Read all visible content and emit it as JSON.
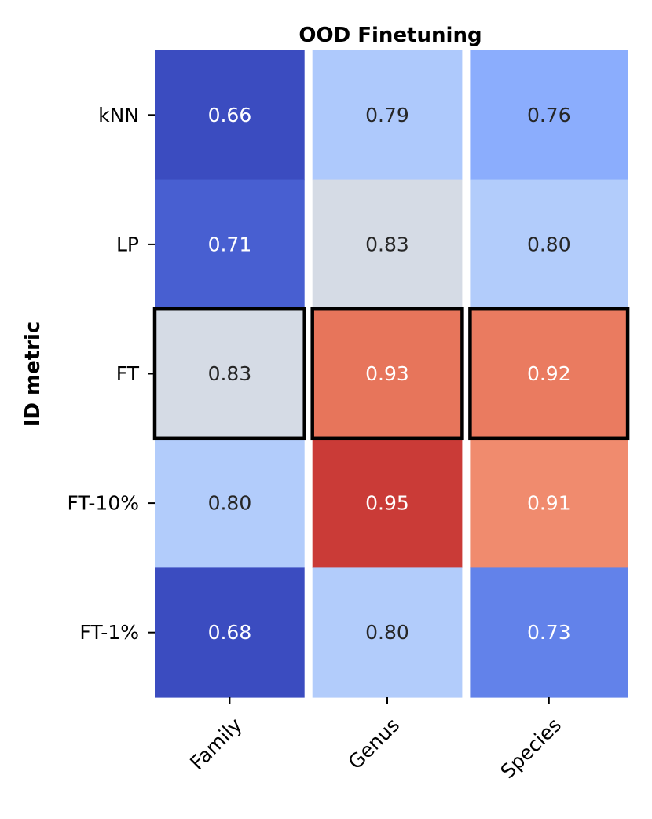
{
  "chart_data": {
    "type": "heatmap",
    "title": "OOD Finetuning",
    "xlabel": "",
    "ylabel": "ID metric",
    "columns": [
      "Family",
      "Genus",
      "Species"
    ],
    "rows": [
      "kNN",
      "LP",
      "FT",
      "FT-10%",
      "FT-1%"
    ],
    "values": [
      [
        0.66,
        0.79,
        0.76
      ],
      [
        0.71,
        0.83,
        0.8
      ],
      [
        0.83,
        0.93,
        0.92
      ],
      [
        0.8,
        0.95,
        0.91
      ],
      [
        0.68,
        0.8,
        0.73
      ]
    ],
    "cell_colors": [
      [
        "#3b4cc0",
        "#aec9fc",
        "#8badfd"
      ],
      [
        "#485fd1",
        "#d5dbe5",
        "#b2ccfb"
      ],
      [
        "#d5dbe5",
        "#e7755b",
        "#ea7b60"
      ],
      [
        "#b2ccfb",
        "#ca3b37",
        "#f08b6e"
      ],
      [
        "#3b4cc0",
        "#b2ccfb",
        "#6282ea"
      ]
    ],
    "label_colors": [
      [
        "#ffffff",
        "#262626",
        "#262626"
      ],
      [
        "#ffffff",
        "#262626",
        "#262626"
      ],
      [
        "#262626",
        "#ffffff",
        "#ffffff"
      ],
      [
        "#262626",
        "#ffffff",
        "#ffffff"
      ],
      [
        "#ffffff",
        "#262626",
        "#ffffff"
      ]
    ],
    "highlighted_row": "FT",
    "colormap": "coolwarm"
  }
}
